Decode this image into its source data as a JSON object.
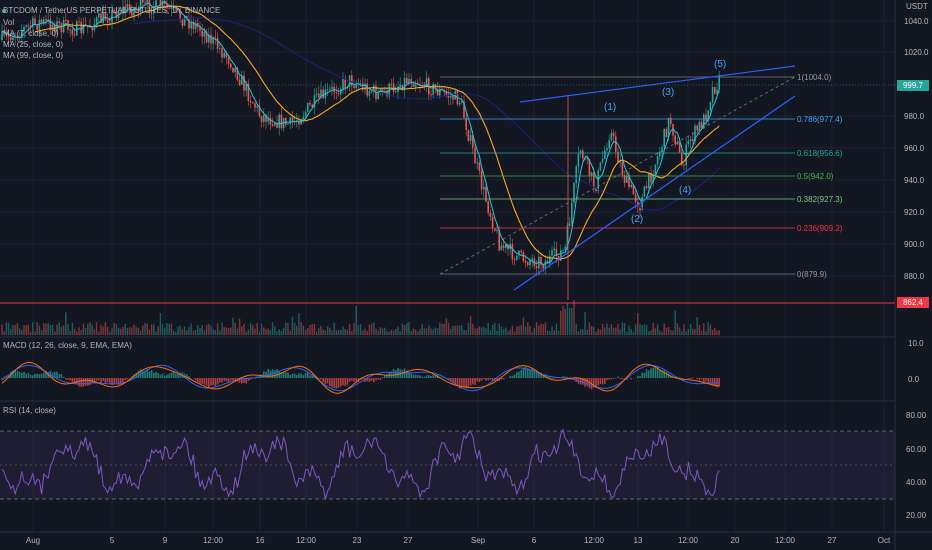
{
  "header": {
    "symbol": "BTCDOM / TetherUS PERPETUAL FUTURES, 1h, BINANCE",
    "vol_label": "Vol",
    "ma7": "MA (7, close, 0)",
    "ma25": "MA (25, close, 0)",
    "ma99": "MA (99, close, 0)"
  },
  "price_axis": {
    "unit": "USDT",
    "ticks": [
      "1040.0",
      "1020.0",
      "980.0",
      "960.0",
      "940.0",
      "920.0",
      "900.0",
      "880.0"
    ],
    "current_price": "999.7",
    "line_price": "862.4"
  },
  "fib_levels": [
    {
      "label": "1(1004.0)",
      "color": "#9598a1"
    },
    {
      "label": "0.786(977.4)",
      "color": "#42a5f5"
    },
    {
      "label": "0.618(956.6)",
      "color": "#26a69a"
    },
    {
      "label": "0.5(942.0)",
      "color": "#4caf50"
    },
    {
      "label": "0.382(927.3)",
      "color": "#81c784"
    },
    {
      "label": "0.236(909.2)",
      "color": "#f23645"
    },
    {
      "label": "0(879.9)",
      "color": "#9598a1"
    }
  ],
  "waves": [
    "(1)",
    "(2)",
    "(3)",
    "(4)",
    "(5)"
  ],
  "macd": {
    "label": "MACD (12, 26, close, 9, EMA, EMA)",
    "ticks": [
      "10.0",
      "0.0"
    ]
  },
  "rsi": {
    "label": "RSI (14, close)",
    "ticks": [
      "80.00",
      "60.00",
      "40.00",
      "20.00"
    ]
  },
  "time_axis": [
    "Aug",
    "5",
    "9",
    "12:00",
    "16",
    "12:00",
    "23",
    "27",
    "Sep",
    "6",
    "12:00",
    "13",
    "12:00",
    "20",
    "12:00",
    "27",
    "Oct"
  ],
  "colors": {
    "bg": "#131722",
    "up": "#26a69a",
    "down": "#ef5350",
    "ma7": "#26c6da",
    "ma25": "#f9a825",
    "trendline": "#2962ff",
    "rsi": "#7e57c2",
    "red_line": "#f23645"
  }
}
